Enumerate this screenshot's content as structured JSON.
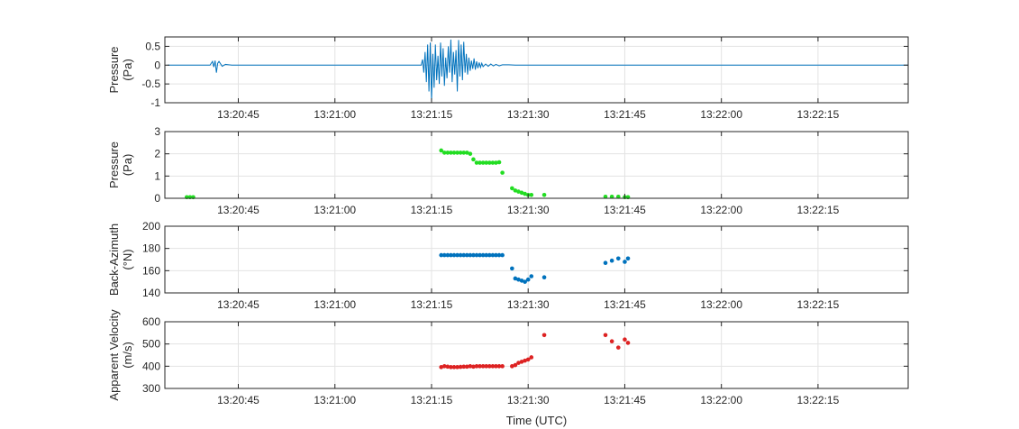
{
  "chart_data": [
    {
      "type": "line",
      "ylabel_lines": [
        "Pressure",
        "(Pa)"
      ],
      "ylim": [
        -1,
        0.75
      ],
      "yticks": [
        -1,
        -0.5,
        0,
        0.5
      ],
      "ytick_labels": [
        "-1",
        "-0.5",
        "0",
        "0.5"
      ],
      "xticks": [
        "13:20:45",
        "13:21:00",
        "13:21:15",
        "13:21:30",
        "13:21:45",
        "13:22:00",
        "13:22:15"
      ],
      "grid": true,
      "color": "#0072BD",
      "series": [
        {
          "x": [
            "13:20:34.0",
            "13:20:38.0",
            "13:20:40.6",
            "13:20:41.0",
            "13:20:41.2",
            "13:20:41.4",
            "13:20:41.6",
            "13:20:41.8",
            "13:20:42.0",
            "13:20:42.5",
            "13:20:43.0",
            "13:20:44.0",
            "13:21:13.4",
            "13:21:13.6",
            "13:21:13.8",
            "13:21:14.0",
            "13:21:14.2",
            "13:21:14.4",
            "13:21:14.6",
            "13:21:14.8",
            "13:21:15.0",
            "13:21:15.2",
            "13:21:15.4",
            "13:21:15.6",
            "13:21:15.8",
            "13:21:16.0",
            "13:21:16.2",
            "13:21:16.4",
            "13:21:16.6",
            "13:21:16.8",
            "13:21:17.0",
            "13:21:17.2",
            "13:21:17.4",
            "13:21:17.6",
            "13:21:17.8",
            "13:21:18.0",
            "13:21:18.2",
            "13:21:18.4",
            "13:21:18.6",
            "13:21:18.8",
            "13:21:19.0",
            "13:21:19.2",
            "13:21:19.4",
            "13:21:19.6",
            "13:21:19.8",
            "13:21:20.0",
            "13:21:20.2",
            "13:21:20.4",
            "13:21:20.6",
            "13:21:20.8",
            "13:21:21.0",
            "13:21:21.2",
            "13:21:21.4",
            "13:21:21.6",
            "13:21:21.8",
            "13:21:22.0",
            "13:21:22.2",
            "13:21:22.4",
            "13:21:22.6",
            "13:21:22.8",
            "13:21:23.0",
            "13:21:23.4",
            "13:21:23.8",
            "13:21:24.2",
            "13:21:24.6",
            "13:21:25.0",
            "13:21:25.5",
            "13:21:26.0",
            "13:21:27.0",
            "13:21:28.0",
            "13:21:30.0",
            "13:22:29.0"
          ],
          "y": [
            0,
            0,
            0,
            0.1,
            -0.05,
            0.12,
            -0.2,
            0.05,
            0.1,
            -0.03,
            0.02,
            0,
            0,
            0.15,
            -0.2,
            0.35,
            -0.45,
            0.55,
            -0.7,
            0.6,
            -0.95,
            0.3,
            -0.6,
            0.55,
            -0.4,
            0.25,
            -0.5,
            0.6,
            -0.3,
            0.45,
            -0.55,
            0.2,
            -0.35,
            0.5,
            -0.2,
            0.68,
            -0.45,
            0.35,
            -0.25,
            0.4,
            -0.7,
            0.67,
            -0.3,
            0.55,
            -0.4,
            0.62,
            -0.2,
            0.3,
            -0.25,
            0.2,
            -0.15,
            0.12,
            -0.1,
            0.18,
            -0.12,
            0.1,
            -0.08,
            0.07,
            -0.06,
            0.05,
            -0.04,
            0.03,
            -0.03,
            0.03,
            -0.02,
            0.02,
            -0.02,
            0.01,
            0.01,
            0,
            0,
            0
          ]
        }
      ]
    },
    {
      "type": "scatter",
      "ylabel_lines": [
        "Pressure",
        "(Pa)"
      ],
      "ylim": [
        0,
        3
      ],
      "yticks": [
        0,
        1,
        2,
        3
      ],
      "ytick_labels": [
        "0",
        "1",
        "2",
        "3"
      ],
      "xticks": [
        "13:20:45",
        "13:21:00",
        "13:21:15",
        "13:21:30",
        "13:21:45",
        "13:22:00",
        "13:22:15"
      ],
      "grid": true,
      "color": "#22DD22",
      "series": [
        {
          "x": [
            "13:20:37.0",
            "13:20:37.5",
            "13:20:38.0",
            "13:21:16.5",
            "13:21:17.0",
            "13:21:17.5",
            "13:21:18.0",
            "13:21:18.5",
            "13:21:19.0",
            "13:21:19.5",
            "13:21:20.0",
            "13:21:20.5",
            "13:21:21.0",
            "13:21:21.5",
            "13:21:22.0",
            "13:21:22.5",
            "13:21:23.0",
            "13:21:23.5",
            "13:21:24.0",
            "13:21:24.5",
            "13:21:25.0",
            "13:21:25.5",
            "13:21:26.0",
            "13:21:27.5",
            "13:21:28.0",
            "13:21:28.5",
            "13:21:29.0",
            "13:21:29.5",
            "13:21:30.0",
            "13:21:30.5",
            "13:21:32.5",
            "13:21:42.0",
            "13:21:43.0",
            "13:21:44.0",
            "13:21:45.0",
            "13:21:45.5"
          ],
          "y": [
            0.05,
            0.05,
            0.05,
            2.15,
            2.05,
            2.05,
            2.05,
            2.05,
            2.05,
            2.05,
            2.05,
            2.05,
            2.0,
            1.75,
            1.6,
            1.6,
            1.6,
            1.6,
            1.6,
            1.6,
            1.6,
            1.62,
            1.15,
            0.45,
            0.35,
            0.3,
            0.25,
            0.2,
            0.15,
            0.15,
            0.15,
            0.07,
            0.07,
            0.07,
            0.05,
            0.05
          ]
        }
      ]
    },
    {
      "type": "scatter",
      "ylabel_lines": [
        "Back-Azimuth",
        "(°N)"
      ],
      "ylim": [
        140,
        200
      ],
      "yticks": [
        140,
        160,
        180,
        200
      ],
      "ytick_labels": [
        "140",
        "160",
        "180",
        "200"
      ],
      "xticks": [
        "13:20:45",
        "13:21:00",
        "13:21:15",
        "13:21:30",
        "13:21:45",
        "13:22:00",
        "13:22:15"
      ],
      "grid": true,
      "color": "#0072BD",
      "series": [
        {
          "x": [
            "13:21:16.5",
            "13:21:17.0",
            "13:21:17.5",
            "13:21:18.0",
            "13:21:18.5",
            "13:21:19.0",
            "13:21:19.5",
            "13:21:20.0",
            "13:21:20.5",
            "13:21:21.0",
            "13:21:21.5",
            "13:21:22.0",
            "13:21:22.5",
            "13:21:23.0",
            "13:21:23.5",
            "13:21:24.0",
            "13:21:24.5",
            "13:21:25.0",
            "13:21:25.5",
            "13:21:26.0",
            "13:21:27.5",
            "13:21:28.0",
            "13:21:28.5",
            "13:21:29.0",
            "13:21:29.5",
            "13:21:30.0",
            "13:21:30.5",
            "13:21:32.5",
            "13:21:42.0",
            "13:21:43.0",
            "13:21:44.0",
            "13:21:45.0",
            "13:21:45.5"
          ],
          "y": [
            174,
            174,
            174,
            174,
            174,
            174,
            174,
            174,
            174,
            174,
            174,
            174,
            174,
            174,
            174,
            174,
            174,
            174,
            174,
            174,
            162,
            153,
            152,
            151,
            150,
            152,
            155,
            154,
            167,
            169,
            171,
            168,
            171
          ]
        }
      ]
    },
    {
      "type": "scatter",
      "ylabel_lines": [
        "Apparent Velocity",
        "(m/s)"
      ],
      "ylim": [
        300,
        600
      ],
      "yticks": [
        300,
        400,
        500,
        600
      ],
      "ytick_labels": [
        "300",
        "400",
        "500",
        "600"
      ],
      "xticks": [
        "13:20:45",
        "13:21:00",
        "13:21:15",
        "13:21:30",
        "13:21:45",
        "13:22:00",
        "13:22:15"
      ],
      "xlabel": "Time (UTC)",
      "grid": true,
      "color": "#DD2222",
      "series": [
        {
          "x": [
            "13:21:16.5",
            "13:21:17.0",
            "13:21:17.5",
            "13:21:18.0",
            "13:21:18.5",
            "13:21:19.0",
            "13:21:19.5",
            "13:21:20.0",
            "13:21:20.5",
            "13:21:21.0",
            "13:21:21.5",
            "13:21:22.0",
            "13:21:22.5",
            "13:21:23.0",
            "13:21:23.5",
            "13:21:24.0",
            "13:21:24.5",
            "13:21:25.0",
            "13:21:25.5",
            "13:21:26.0",
            "13:21:27.5",
            "13:21:28.0",
            "13:21:28.5",
            "13:21:29.0",
            "13:21:29.5",
            "13:21:30.0",
            "13:21:30.5",
            "13:21:32.5",
            "13:21:42.0",
            "13:21:43.0",
            "13:21:44.0",
            "13:21:45.0",
            "13:21:45.5"
          ],
          "y": [
            396,
            400,
            398,
            396,
            396,
            396,
            397,
            398,
            398,
            400,
            398,
            400,
            400,
            400,
            400,
            400,
            400,
            400,
            400,
            400,
            400,
            405,
            415,
            420,
            425,
            430,
            440,
            540,
            540,
            512,
            484,
            520,
            505
          ]
        }
      ]
    }
  ]
}
